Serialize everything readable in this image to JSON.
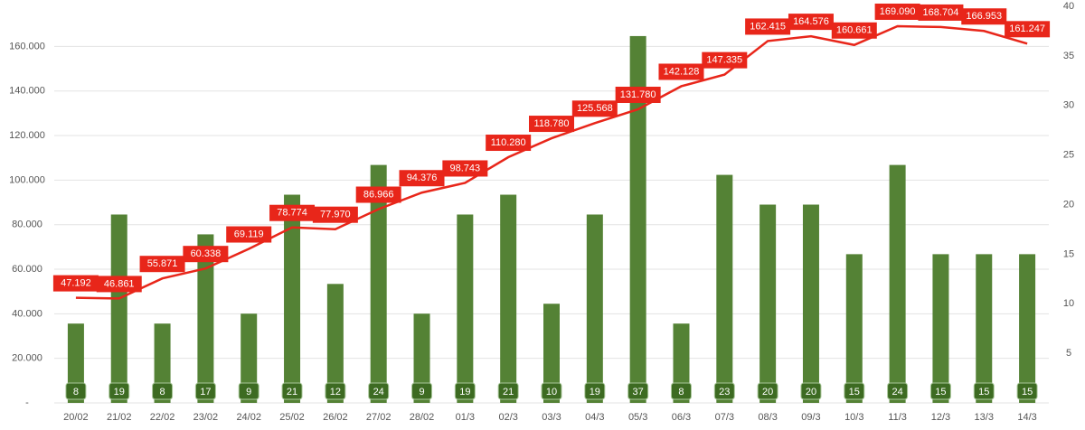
{
  "chart_data": {
    "type": "bar-line",
    "categories": [
      "20/02",
      "21/02",
      "22/02",
      "23/02",
      "24/02",
      "25/02",
      "26/02",
      "27/02",
      "28/02",
      "01/3",
      "02/3",
      "03/3",
      "04/3",
      "05/3",
      "06/3",
      "07/3",
      "08/3",
      "09/3",
      "10/3",
      "11/3",
      "12/3",
      "13/3",
      "14/3"
    ],
    "series": [
      {
        "type": "bar",
        "color": "#548235",
        "axis": "y2",
        "values": [
          8,
          19,
          8,
          17,
          9,
          21,
          12,
          24,
          9,
          19,
          21,
          10,
          19,
          37,
          8,
          23,
          20,
          20,
          15,
          24,
          15,
          15,
          15
        ]
      },
      {
        "type": "line",
        "color": "#e8261a",
        "values": [
          47192,
          46861,
          55871,
          60338,
          69119,
          78774,
          77970,
          86966,
          94376,
          98743,
          110280,
          118780,
          125568,
          131780,
          142128,
          147335,
          162415,
          164576,
          160661,
          169090,
          168704,
          166953,
          161247
        ],
        "value_labels": [
          "47.192",
          "46.861",
          "55.871",
          "60.338",
          "69.119",
          "78.774",
          "77.970",
          "86.966",
          "94.376",
          "98.743",
          "110.280",
          "118.780",
          "125.568",
          "131.780",
          "142.128",
          "147.335",
          "162.415",
          "164.576",
          "160.661",
          "169.090",
          "168.704",
          "166.953",
          "161.247"
        ]
      }
    ],
    "ylim": [
      0,
      178000
    ],
    "yticks": [
      {
        "value": 0,
        "label": "-"
      },
      {
        "value": 20000,
        "label": "20.000"
      },
      {
        "value": 40000,
        "label": "40.000"
      },
      {
        "value": 60000,
        "label": "60.000"
      },
      {
        "value": 80000,
        "label": "80.000"
      },
      {
        "value": 100000,
        "label": "100.000"
      },
      {
        "value": 120000,
        "label": "120.000"
      },
      {
        "value": 140000,
        "label": "140.000"
      },
      {
        "value": 160000,
        "label": "160.000"
      }
    ],
    "y2lim": [
      0,
      40
    ],
    "y2ticks": [
      5,
      10,
      15,
      20,
      25,
      30,
      35,
      40
    ],
    "grid": true
  }
}
